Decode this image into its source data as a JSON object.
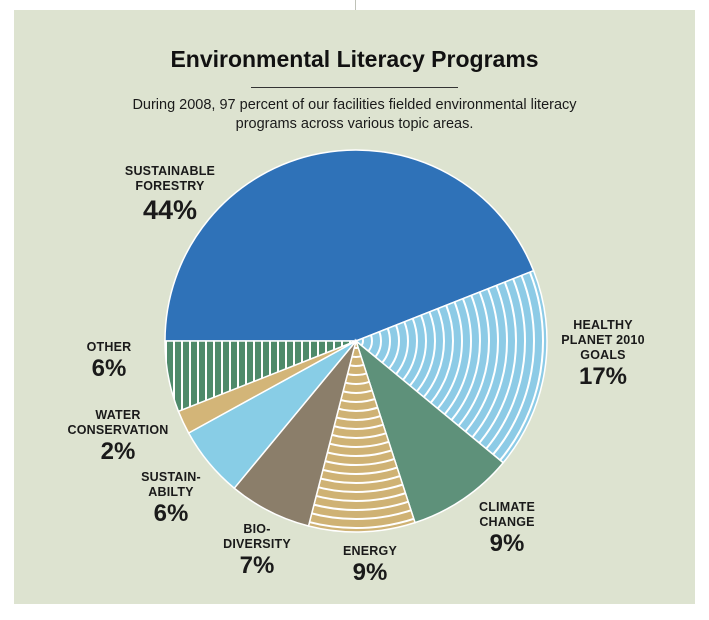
{
  "chart_data": {
    "type": "pie",
    "title": "Environmental Literacy Programs",
    "subtitle": "During 2008, 97 percent of our facilities fielded environmental literacy programs across various topic areas.",
    "slices": [
      {
        "name": "SUSTAINABLE FORESTRY",
        "label": "SUSTAINABLE\nFORESTRY",
        "value": 44,
        "display": "44%",
        "color": "#2f72b8",
        "pattern": "solid"
      },
      {
        "name": "HEALTHY PLANET 2010 GOALS",
        "label": "HEALTHY\nPLANET 2010\nGOALS",
        "value": 17,
        "display": "17%",
        "color": "#8dcbe6",
        "pattern": "rings"
      },
      {
        "name": "CLIMATE CHANGE",
        "label": "CLIMATE\nCHANGE",
        "value": 9,
        "display": "9%",
        "color": "#5e917a",
        "pattern": "solid"
      },
      {
        "name": "ENERGY",
        "label": "ENERGY",
        "value": 9,
        "display": "9%",
        "color": "#cfb274",
        "pattern": "rings"
      },
      {
        "name": "BIO-DIVERSITY",
        "label": "BIO-\nDIVERSITY",
        "value": 7,
        "display": "7%",
        "color": "#8b7e6a",
        "pattern": "solid"
      },
      {
        "name": "SUSTAIN-ABILTY",
        "label": "SUSTAIN-\nABILTY",
        "value": 6,
        "display": "6%",
        "color": "#88cde6",
        "pattern": "solid"
      },
      {
        "name": "WATER CONSERVATION",
        "label": "WATER\nCONSERVATION",
        "value": 2,
        "display": "2%",
        "color": "#d3b578",
        "pattern": "solid"
      },
      {
        "name": "OTHER",
        "label": "OTHER",
        "value": 6,
        "display": "6%",
        "color": "#4e8a6a",
        "pattern": "stripes"
      }
    ]
  }
}
